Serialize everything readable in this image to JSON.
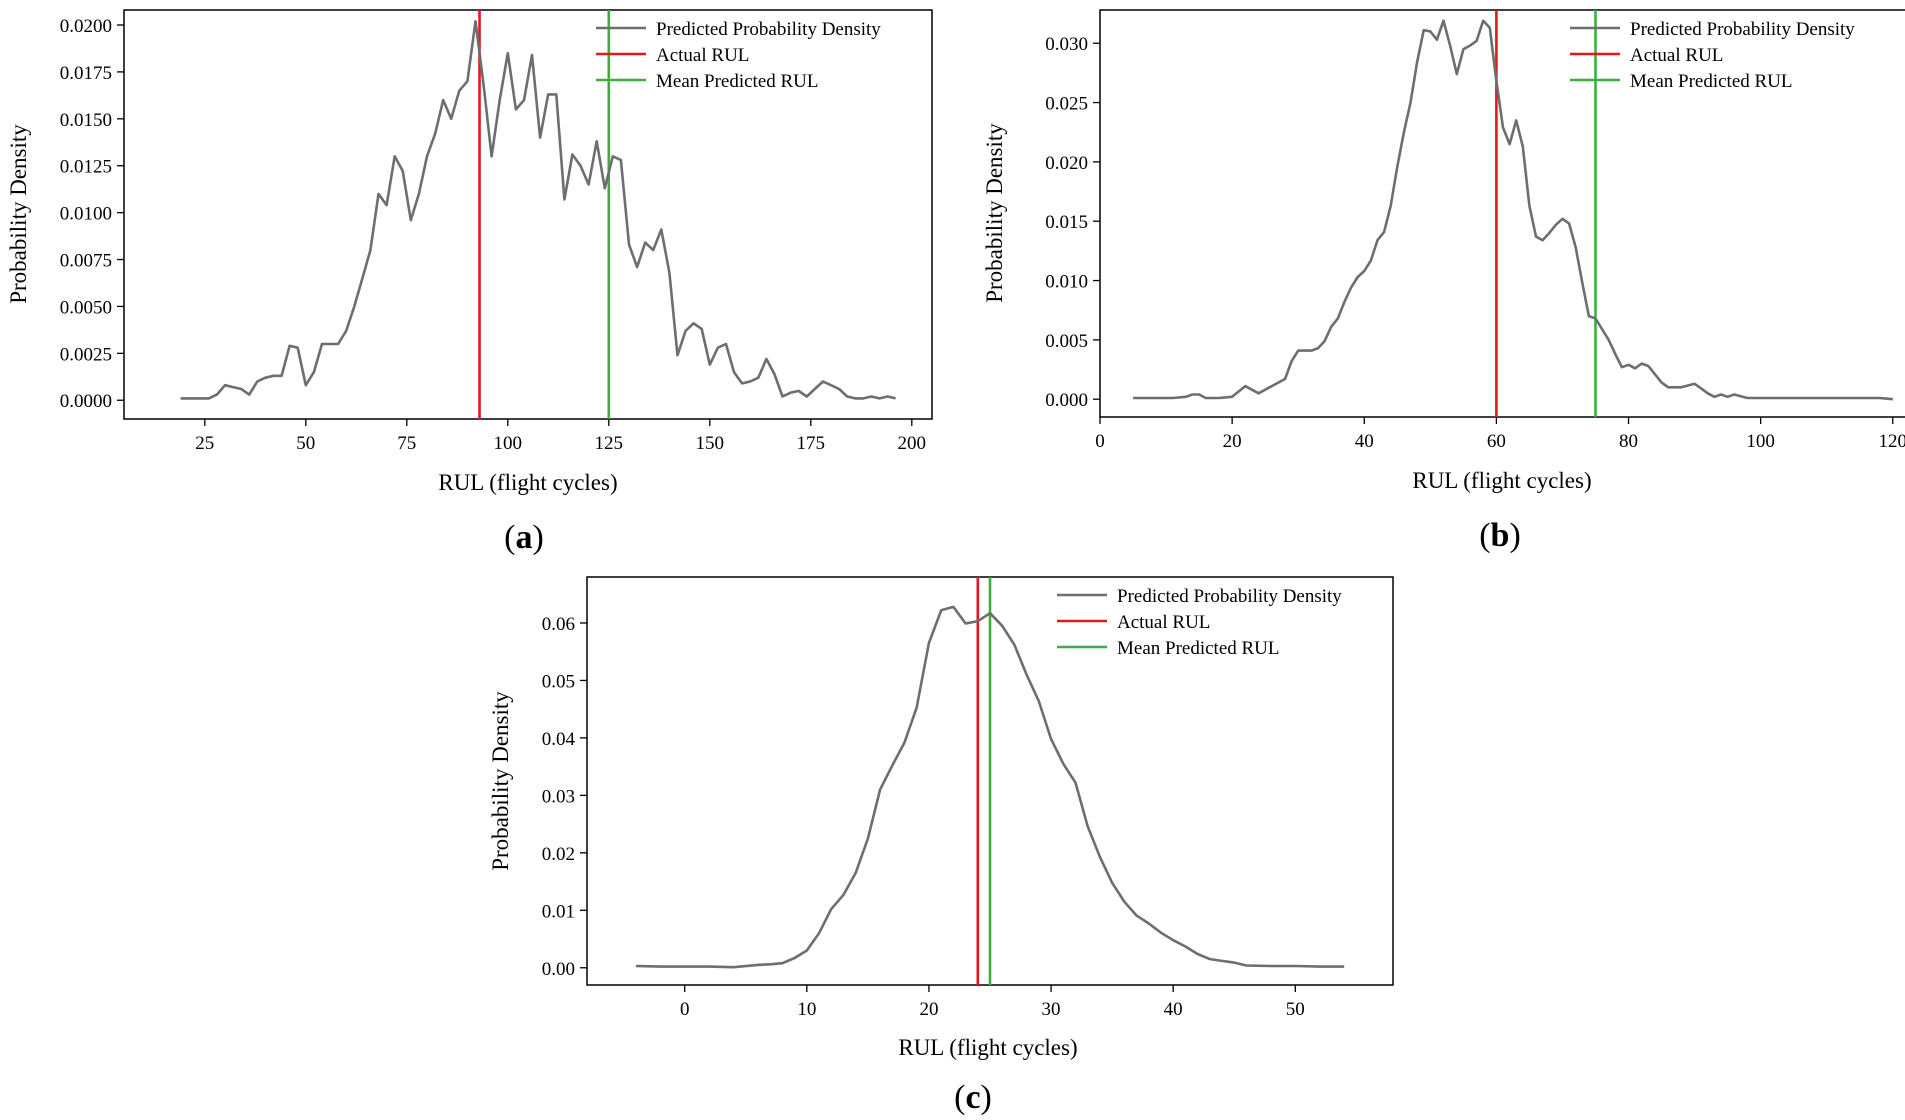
{
  "colors": {
    "density": "#6e6e6e",
    "actual": "#e0191f",
    "mean": "#3fae3f",
    "axis": "#000000"
  },
  "chart_data": [
    {
      "panel": "a",
      "type": "line",
      "xlabel": "RUL (flight cycles)",
      "ylabel": "Probability  Density",
      "xlim": [
        5,
        205
      ],
      "ylim": [
        -0.001,
        0.0208
      ],
      "xticks": [
        25,
        50,
        75,
        100,
        125,
        150,
        175,
        200
      ],
      "yticks": [
        0.0,
        0.0025,
        0.005,
        0.0075,
        0.01,
        0.0125,
        0.015,
        0.0175,
        0.02
      ],
      "ytick_decimals": 4,
      "legend": [
        "Predicted Probability Density",
        "Actual RUL",
        "Mean Predicted RUL"
      ],
      "legend_position": "top-right",
      "actual_rul": 93,
      "mean_predicted_rul": 125,
      "series": [
        {
          "name": "Predicted Probability Density",
          "x": [
            19,
            22,
            26,
            28,
            30,
            32,
            34,
            36,
            38,
            40,
            42,
            44,
            46,
            48,
            50,
            52,
            54,
            56,
            58,
            60,
            62,
            64,
            66,
            68,
            70,
            72,
            74,
            76,
            78,
            80,
            82,
            84,
            86,
            88,
            90,
            92,
            94,
            96,
            98,
            100,
            102,
            104,
            106,
            108,
            110,
            112,
            114,
            116,
            118,
            120,
            122,
            124,
            126,
            128,
            130,
            132,
            134,
            136,
            138,
            140,
            142,
            144,
            146,
            148,
            150,
            152,
            154,
            156,
            158,
            160,
            162,
            164,
            166,
            168,
            170,
            172,
            174,
            176,
            178,
            180,
            182,
            184,
            186,
            188,
            190,
            192,
            194,
            196
          ],
          "y": [
            0.0001,
            0.0001,
            0.0001,
            0.0003,
            0.0008,
            0.0007,
            0.0006,
            0.0003,
            0.001,
            0.0012,
            0.0013,
            0.0013,
            0.0029,
            0.0028,
            0.0008,
            0.0015,
            0.003,
            0.003,
            0.003,
            0.0037,
            0.005,
            0.0065,
            0.008,
            0.011,
            0.0104,
            0.013,
            0.0122,
            0.0096,
            0.011,
            0.013,
            0.0142,
            0.016,
            0.015,
            0.0165,
            0.017,
            0.0202,
            0.0168,
            0.013,
            0.016,
            0.0185,
            0.0155,
            0.016,
            0.0184,
            0.014,
            0.0163,
            0.0163,
            0.0107,
            0.0131,
            0.0125,
            0.0115,
            0.0138,
            0.0113,
            0.013,
            0.0128,
            0.0083,
            0.0071,
            0.0084,
            0.008,
            0.0091,
            0.0068,
            0.0024,
            0.0037,
            0.0041,
            0.0038,
            0.0019,
            0.0028,
            0.003,
            0.0015,
            0.0009,
            0.001,
            0.0012,
            0.0022,
            0.0014,
            0.0002,
            0.0004,
            0.0005,
            0.0002,
            0.0006,
            0.001,
            0.0008,
            0.0006,
            0.0002,
            0.0001,
            0.0001,
            0.0002,
            0.0001,
            0.0002,
            0.0001
          ]
        }
      ]
    },
    {
      "panel": "b",
      "type": "line",
      "xlabel": "RUL (flight cycles)",
      "ylabel": "Probability  Density",
      "xlim": [
        0,
        122
      ],
      "ylim": [
        -0.0015,
        0.0328
      ],
      "xticks": [
        0,
        20,
        40,
        60,
        80,
        100,
        120
      ],
      "yticks": [
        0.0,
        0.005,
        0.01,
        0.015,
        0.02,
        0.025,
        0.03
      ],
      "ytick_decimals": 3,
      "legend": [
        "Predicted Probability Density",
        "Actual RUL",
        "Mean Predicted RUL"
      ],
      "legend_position": "top-right",
      "actual_rul": 60,
      "mean_predicted_rul": 75,
      "series": [
        {
          "name": "Predicted Probability Density",
          "x": [
            5,
            7,
            9,
            11,
            13,
            14,
            15,
            16,
            18,
            20,
            22,
            24,
            26,
            28,
            29,
            30,
            31,
            32,
            33,
            34,
            35,
            36,
            37,
            38,
            39,
            40,
            41,
            42,
            43,
            44,
            45,
            46,
            47,
            48,
            49,
            50,
            51,
            52,
            53,
            54,
            55,
            56,
            57,
            58,
            59,
            60,
            61,
            62,
            63,
            64,
            65,
            66,
            67,
            68,
            69,
            70,
            71,
            72,
            73,
            74,
            75,
            76,
            77,
            78,
            79,
            80,
            81,
            82,
            83,
            84,
            85,
            86,
            88,
            90,
            91,
            92,
            93,
            94,
            95,
            96,
            98,
            100,
            102,
            104,
            106,
            108,
            110,
            112,
            114,
            116,
            118,
            120
          ],
          "y": [
            0.0001,
            0.0001,
            0.0001,
            0.0001,
            0.0002,
            0.0004,
            0.0004,
            0.0001,
            0.0001,
            0.0002,
            0.0011,
            0.0005,
            0.0011,
            0.0017,
            0.0032,
            0.0041,
            0.0041,
            0.0041,
            0.0043,
            0.0049,
            0.0061,
            0.0068,
            0.0082,
            0.0094,
            0.0103,
            0.0108,
            0.0117,
            0.0134,
            0.0141,
            0.0163,
            0.0196,
            0.0225,
            0.025,
            0.0284,
            0.0311,
            0.031,
            0.0303,
            0.0319,
            0.0298,
            0.0274,
            0.0295,
            0.0298,
            0.0302,
            0.0319,
            0.0313,
            0.0268,
            0.0229,
            0.0215,
            0.0235,
            0.0213,
            0.0163,
            0.0137,
            0.0134,
            0.014,
            0.0147,
            0.0152,
            0.0148,
            0.0128,
            0.0098,
            0.007,
            0.0068,
            0.0059,
            0.005,
            0.0038,
            0.0027,
            0.0029,
            0.0026,
            0.003,
            0.0028,
            0.0021,
            0.0014,
            0.001,
            0.001,
            0.0013,
            0.0009,
            0.0005,
            0.0002,
            0.0004,
            0.0002,
            0.0004,
            0.0001,
            0.0001,
            0.0001,
            0.0001,
            0.0001,
            0.0001,
            0.0001,
            0.0001,
            0.0001,
            0.0001,
            0.0001,
            0.0
          ]
        }
      ]
    },
    {
      "panel": "c",
      "type": "line",
      "xlabel": "RUL (flight cycles)",
      "ylabel": "Probability  Density",
      "xlim": [
        -8,
        58
      ],
      "ylim": [
        -0.003,
        0.068
      ],
      "xticks": [
        0,
        10,
        20,
        30,
        40,
        50
      ],
      "yticks": [
        0.0,
        0.01,
        0.02,
        0.03,
        0.04,
        0.05,
        0.06
      ],
      "ytick_decimals": 2,
      "legend": [
        "Predicted Probability Density",
        "Actual RUL",
        "Mean Predicted RUL"
      ],
      "legend_position": "top-right",
      "actual_rul": 24,
      "mean_predicted_rul": 25,
      "series": [
        {
          "name": "Predicted Probability Density",
          "x": [
            -4,
            -2,
            0,
            2,
            4,
            6,
            7,
            8,
            9,
            10,
            11,
            12,
            13,
            14,
            15,
            16,
            17,
            18,
            19,
            20,
            21,
            22,
            23,
            24,
            25,
            26,
            27,
            28,
            29,
            30,
            31,
            32,
            33,
            34,
            35,
            36,
            37,
            38,
            39,
            40,
            41,
            42,
            43,
            44,
            45,
            46,
            48,
            50,
            52,
            54
          ],
          "y": [
            0.0003,
            0.0002,
            0.0002,
            0.0002,
            0.0001,
            0.0005,
            0.0006,
            0.0008,
            0.0017,
            0.003,
            0.006,
            0.0102,
            0.0127,
            0.0165,
            0.0225,
            0.031,
            0.0352,
            0.0392,
            0.0453,
            0.0565,
            0.0622,
            0.0628,
            0.0599,
            0.0603,
            0.0617,
            0.0595,
            0.0562,
            0.051,
            0.0464,
            0.0398,
            0.0355,
            0.0322,
            0.0246,
            0.0193,
            0.0148,
            0.0115,
            0.0091,
            0.0077,
            0.0061,
            0.0048,
            0.0037,
            0.0024,
            0.0015,
            0.0012,
            0.0009,
            0.0004,
            0.0003,
            0.0003,
            0.0002,
            0.0002
          ]
        }
      ]
    }
  ]
}
